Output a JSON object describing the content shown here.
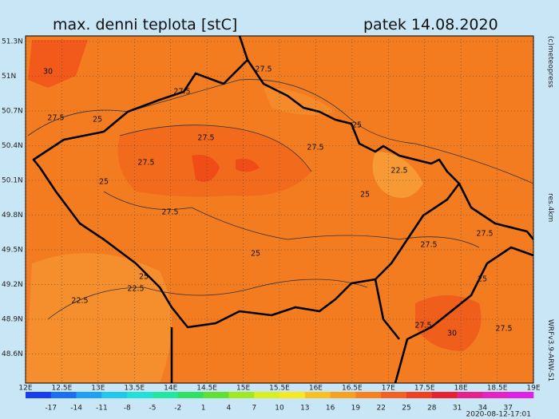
{
  "header": {
    "title": "max. denni teplota [stC]",
    "date": "patek 14.08.2020"
  },
  "lat_labels": [
    "51.3N",
    "51N",
    "50.7N",
    "50.4N",
    "50.1N",
    "49.8N",
    "49.5N",
    "49.2N",
    "48.9N",
    "48.6N"
  ],
  "lon_labels": [
    "12E",
    "12.5E",
    "13E",
    "13.5E",
    "14E",
    "14.5E",
    "15E",
    "15.5E",
    "16E",
    "16.5E",
    "17E",
    "17.5E",
    "18E",
    "18.5E",
    "19E"
  ],
  "colorbar_labels": [
    -17,
    -14,
    -11,
    -8,
    -5,
    -2,
    1,
    4,
    7,
    10,
    13,
    16,
    19,
    22,
    25,
    28,
    31,
    34,
    37
  ],
  "contour_labels": [
    "30",
    "27.5",
    "27.5",
    "27.5",
    "25",
    "25",
    "27.5",
    "27.5",
    "27.5",
    "22.5",
    "25",
    "25",
    "27.5",
    "27.5",
    "27.5",
    "25",
    "25",
    "25",
    "22.5",
    "22.5",
    "27.5",
    "30",
    "27.5"
  ],
  "side": {
    "copyright": "(c)meteopress",
    "resolution": "res.4km",
    "model": "WRFv3.9-ARW-S1"
  },
  "footer": "2020-08-12-17:01"
}
